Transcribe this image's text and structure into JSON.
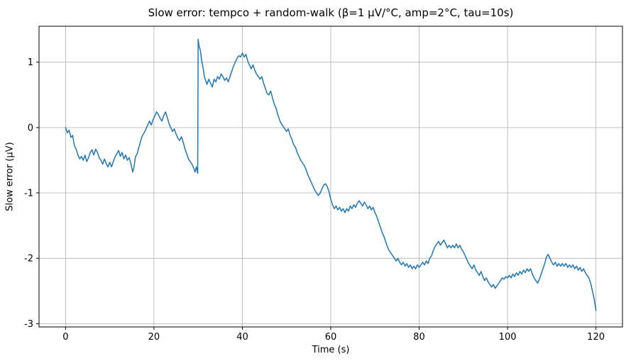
{
  "chart_data": {
    "type": "line",
    "title": "Slow error: tempco + random-walk (β=1 μV/°C, amp=2°C, tau=10s)",
    "xlabel": "Time (s)",
    "ylabel": "Slow error (μV)",
    "xlim": [
      -6,
      126
    ],
    "ylim": [
      -3.05,
      1.55
    ],
    "xticks": [
      0,
      20,
      40,
      60,
      80,
      100,
      120
    ],
    "yticks": [
      -3,
      -2,
      -1,
      0,
      1
    ],
    "grid": true,
    "grid_color": "#b0b0b0",
    "line_color": "#1f77b4",
    "line_width": 1.5,
    "legend": null,
    "series": [
      {
        "name": "slow_error",
        "points": [
          [
            0,
            0
          ],
          [
            0.4,
            -0.08
          ],
          [
            0.8,
            -0.04
          ],
          [
            1.2,
            -0.15
          ],
          [
            1.6,
            -0.12
          ],
          [
            2,
            -0.28
          ],
          [
            2.4,
            -0.33
          ],
          [
            2.8,
            -0.42
          ],
          [
            3.2,
            -0.48
          ],
          [
            3.6,
            -0.44
          ],
          [
            4,
            -0.5
          ],
          [
            4.4,
            -0.42
          ],
          [
            4.8,
            -0.52
          ],
          [
            5.2,
            -0.46
          ],
          [
            5.6,
            -0.38
          ],
          [
            6,
            -0.34
          ],
          [
            6.4,
            -0.42
          ],
          [
            6.8,
            -0.33
          ],
          [
            7.2,
            -0.38
          ],
          [
            7.6,
            -0.46
          ],
          [
            8,
            -0.5
          ],
          [
            8.4,
            -0.56
          ],
          [
            8.8,
            -0.48
          ],
          [
            9.2,
            -0.55
          ],
          [
            9.6,
            -0.6
          ],
          [
            10,
            -0.53
          ],
          [
            10.4,
            -0.6
          ],
          [
            10.8,
            -0.52
          ],
          [
            11.2,
            -0.45
          ],
          [
            11.6,
            -0.4
          ],
          [
            12,
            -0.35
          ],
          [
            12.4,
            -0.44
          ],
          [
            12.8,
            -0.38
          ],
          [
            13.2,
            -0.48
          ],
          [
            13.6,
            -0.42
          ],
          [
            14,
            -0.5
          ],
          [
            14.4,
            -0.46
          ],
          [
            14.8,
            -0.56
          ],
          [
            15.2,
            -0.68
          ],
          [
            15.5,
            -0.6
          ],
          [
            15.8,
            -0.45
          ],
          [
            16.2,
            -0.4
          ],
          [
            16.6,
            -0.3
          ],
          [
            17,
            -0.2
          ],
          [
            17.4,
            -0.12
          ],
          [
            17.8,
            -0.08
          ],
          [
            18.2,
            -0.02
          ],
          [
            18.6,
            0.04
          ],
          [
            19,
            0.1
          ],
          [
            19.4,
            0.04
          ],
          [
            19.8,
            0.12
          ],
          [
            20.2,
            0.18
          ],
          [
            20.6,
            0.24
          ],
          [
            21,
            0.2
          ],
          [
            21.4,
            0.14
          ],
          [
            21.8,
            0.1
          ],
          [
            22.2,
            0.18
          ],
          [
            22.6,
            0.24
          ],
          [
            23,
            0.16
          ],
          [
            23.4,
            0.06
          ],
          [
            23.8,
            0.0
          ],
          [
            24.2,
            -0.06
          ],
          [
            24.6,
            -0.02
          ],
          [
            25,
            -0.1
          ],
          [
            25.4,
            -0.16
          ],
          [
            25.8,
            -0.2
          ],
          [
            26.2,
            -0.14
          ],
          [
            26.6,
            -0.22
          ],
          [
            27,
            -0.32
          ],
          [
            27.4,
            -0.4
          ],
          [
            27.8,
            -0.48
          ],
          [
            28.2,
            -0.52
          ],
          [
            28.6,
            -0.56
          ],
          [
            29,
            -0.62
          ],
          [
            29.3,
            -0.68
          ],
          [
            29.6,
            -0.6
          ],
          [
            29.9,
            -0.7
          ],
          [
            30,
            1.35
          ],
          [
            30.2,
            1.25
          ],
          [
            30.5,
            1.18
          ],
          [
            30.8,
            1.02
          ],
          [
            31.1,
            0.92
          ],
          [
            31.4,
            0.78
          ],
          [
            31.7,
            0.72
          ],
          [
            32,
            0.66
          ],
          [
            32.4,
            0.74
          ],
          [
            32.8,
            0.68
          ],
          [
            33.2,
            0.62
          ],
          [
            33.6,
            0.74
          ],
          [
            34,
            0.7
          ],
          [
            34.4,
            0.78
          ],
          [
            34.8,
            0.74
          ],
          [
            35.2,
            0.82
          ],
          [
            35.6,
            0.78
          ],
          [
            36,
            0.72
          ],
          [
            36.4,
            0.76
          ],
          [
            36.8,
            0.7
          ],
          [
            37.2,
            0.78
          ],
          [
            37.6,
            0.86
          ],
          [
            38,
            0.94
          ],
          [
            38.4,
            1.0
          ],
          [
            38.8,
            1.06
          ],
          [
            39.2,
            1.1
          ],
          [
            39.6,
            1.08
          ],
          [
            40,
            1.14
          ],
          [
            40.4,
            1.08
          ],
          [
            40.8,
            1.12
          ],
          [
            41.2,
            1.02
          ],
          [
            41.6,
            0.96
          ],
          [
            42,
            0.9
          ],
          [
            42.4,
            0.96
          ],
          [
            42.8,
            0.88
          ],
          [
            43.2,
            0.82
          ],
          [
            43.6,
            0.78
          ],
          [
            44,
            0.74
          ],
          [
            44.4,
            0.78
          ],
          [
            44.8,
            0.68
          ],
          [
            45.2,
            0.6
          ],
          [
            45.6,
            0.52
          ],
          [
            46,
            0.5
          ],
          [
            46.4,
            0.56
          ],
          [
            46.8,
            0.46
          ],
          [
            47.2,
            0.36
          ],
          [
            47.6,
            0.3
          ],
          [
            48,
            0.2
          ],
          [
            48.4,
            0.12
          ],
          [
            48.8,
            0.06
          ],
          [
            49.2,
            0.02
          ],
          [
            49.6,
            -0.02
          ],
          [
            50,
            -0.06
          ],
          [
            50.4,
            -0.02
          ],
          [
            50.8,
            -0.12
          ],
          [
            51.2,
            -0.18
          ],
          [
            51.6,
            -0.26
          ],
          [
            52,
            -0.3
          ],
          [
            52.4,
            -0.38
          ],
          [
            52.8,
            -0.44
          ],
          [
            53.2,
            -0.5
          ],
          [
            53.6,
            -0.54
          ],
          [
            54,
            -0.58
          ],
          [
            54.4,
            -0.64
          ],
          [
            54.8,
            -0.72
          ],
          [
            55.2,
            -0.78
          ],
          [
            55.6,
            -0.84
          ],
          [
            56,
            -0.9
          ],
          [
            56.4,
            -0.96
          ],
          [
            56.8,
            -1.0
          ],
          [
            57.2,
            -1.04
          ],
          [
            57.6,
            -1.0
          ],
          [
            58,
            -0.94
          ],
          [
            58.4,
            -0.88
          ],
          [
            58.8,
            -0.86
          ],
          [
            59.2,
            -0.9
          ],
          [
            59.6,
            -0.98
          ],
          [
            60,
            -1.1
          ],
          [
            60.4,
            -1.18
          ],
          [
            60.8,
            -1.24
          ],
          [
            61.2,
            -1.2
          ],
          [
            61.6,
            -1.26
          ],
          [
            62,
            -1.22
          ],
          [
            62.4,
            -1.28
          ],
          [
            62.8,
            -1.24
          ],
          [
            63.2,
            -1.3
          ],
          [
            63.6,
            -1.24
          ],
          [
            64,
            -1.28
          ],
          [
            64.4,
            -1.2
          ],
          [
            64.8,
            -1.24
          ],
          [
            65.2,
            -1.18
          ],
          [
            65.6,
            -1.22
          ],
          [
            66,
            -1.16
          ],
          [
            66.4,
            -1.12
          ],
          [
            66.8,
            -1.16
          ],
          [
            67.2,
            -1.2
          ],
          [
            67.6,
            -1.14
          ],
          [
            68,
            -1.18
          ],
          [
            68.4,
            -1.24
          ],
          [
            68.8,
            -1.2
          ],
          [
            69.2,
            -1.26
          ],
          [
            69.6,
            -1.22
          ],
          [
            70,
            -1.3
          ],
          [
            70.4,
            -1.36
          ],
          [
            70.8,
            -1.44
          ],
          [
            71.2,
            -1.52
          ],
          [
            71.6,
            -1.6
          ],
          [
            72,
            -1.66
          ],
          [
            72.4,
            -1.74
          ],
          [
            72.8,
            -1.82
          ],
          [
            73.2,
            -1.88
          ],
          [
            73.6,
            -1.92
          ],
          [
            74,
            -1.96
          ],
          [
            74.4,
            -2.0
          ],
          [
            74.8,
            -2.04
          ],
          [
            75.2,
            -2.0
          ],
          [
            75.6,
            -2.06
          ],
          [
            76,
            -2.1
          ],
          [
            76.4,
            -2.06
          ],
          [
            76.8,
            -2.12
          ],
          [
            77.2,
            -2.08
          ],
          [
            77.6,
            -2.14
          ],
          [
            78,
            -2.1
          ],
          [
            78.4,
            -2.16
          ],
          [
            78.8,
            -2.12
          ],
          [
            79.2,
            -2.16
          ],
          [
            79.6,
            -2.1
          ],
          [
            80,
            -2.14
          ],
          [
            80.4,
            -2.1
          ],
          [
            80.8,
            -2.06
          ],
          [
            81.2,
            -2.1
          ],
          [
            81.6,
            -2.04
          ],
          [
            82,
            -2.08
          ],
          [
            82.4,
            -2.0
          ],
          [
            82.8,
            -1.96
          ],
          [
            83.2,
            -1.88
          ],
          [
            83.6,
            -1.82
          ],
          [
            84,
            -1.78
          ],
          [
            84.4,
            -1.74
          ],
          [
            84.8,
            -1.8
          ],
          [
            85.2,
            -1.76
          ],
          [
            85.6,
            -1.72
          ],
          [
            86,
            -1.78
          ],
          [
            86.4,
            -1.84
          ],
          [
            86.8,
            -1.8
          ],
          [
            87.2,
            -1.84
          ],
          [
            87.6,
            -1.8
          ],
          [
            88,
            -1.84
          ],
          [
            88.4,
            -1.78
          ],
          [
            88.8,
            -1.84
          ],
          [
            89.2,
            -1.8
          ],
          [
            89.6,
            -1.86
          ],
          [
            90,
            -1.9
          ],
          [
            90.4,
            -1.96
          ],
          [
            90.8,
            -2.02
          ],
          [
            91.2,
            -2.08
          ],
          [
            91.6,
            -2.12
          ],
          [
            92,
            -2.16
          ],
          [
            92.4,
            -2.1
          ],
          [
            92.8,
            -2.18
          ],
          [
            93.2,
            -2.22
          ],
          [
            93.6,
            -2.26
          ],
          [
            94,
            -2.2
          ],
          [
            94.4,
            -2.28
          ],
          [
            94.8,
            -2.34
          ],
          [
            95.2,
            -2.3
          ],
          [
            95.6,
            -2.36
          ],
          [
            96,
            -2.4
          ],
          [
            96.4,
            -2.44
          ],
          [
            96.8,
            -2.4
          ],
          [
            97.2,
            -2.46
          ],
          [
            97.6,
            -2.42
          ],
          [
            98,
            -2.38
          ],
          [
            98.4,
            -2.34
          ],
          [
            98.8,
            -2.3
          ],
          [
            99.2,
            -2.32
          ],
          [
            99.6,
            -2.28
          ],
          [
            100,
            -2.3
          ],
          [
            100.4,
            -2.26
          ],
          [
            100.8,
            -2.3
          ],
          [
            101.2,
            -2.24
          ],
          [
            101.6,
            -2.28
          ],
          [
            102,
            -2.22
          ],
          [
            102.4,
            -2.26
          ],
          [
            102.8,
            -2.2
          ],
          [
            103.2,
            -2.24
          ],
          [
            103.6,
            -2.18
          ],
          [
            104,
            -2.22
          ],
          [
            104.4,
            -2.16
          ],
          [
            104.8,
            -2.2
          ],
          [
            105.2,
            -2.16
          ],
          [
            105.6,
            -2.24
          ],
          [
            106,
            -2.3
          ],
          [
            106.4,
            -2.34
          ],
          [
            106.8,
            -2.38
          ],
          [
            107.2,
            -2.32
          ],
          [
            107.6,
            -2.24
          ],
          [
            108,
            -2.16
          ],
          [
            108.4,
            -2.08
          ],
          [
            108.8,
            -1.98
          ],
          [
            109.2,
            -1.94
          ],
          [
            109.6,
            -2.0
          ],
          [
            110,
            -2.06
          ],
          [
            110.4,
            -2.1
          ],
          [
            110.8,
            -2.06
          ],
          [
            111.2,
            -2.12
          ],
          [
            111.6,
            -2.08
          ],
          [
            112,
            -2.12
          ],
          [
            112.4,
            -2.08
          ],
          [
            112.8,
            -2.12
          ],
          [
            113.2,
            -2.08
          ],
          [
            113.6,
            -2.14
          ],
          [
            114,
            -2.1
          ],
          [
            114.4,
            -2.14
          ],
          [
            114.8,
            -2.1
          ],
          [
            115.2,
            -2.16
          ],
          [
            115.6,
            -2.12
          ],
          [
            116,
            -2.18
          ],
          [
            116.4,
            -2.14
          ],
          [
            116.8,
            -2.2
          ],
          [
            117.2,
            -2.16
          ],
          [
            117.6,
            -2.22
          ],
          [
            118,
            -2.26
          ],
          [
            118.4,
            -2.3
          ],
          [
            118.8,
            -2.38
          ],
          [
            119.2,
            -2.5
          ],
          [
            119.6,
            -2.62
          ],
          [
            120,
            -2.8
          ]
        ]
      }
    ]
  }
}
